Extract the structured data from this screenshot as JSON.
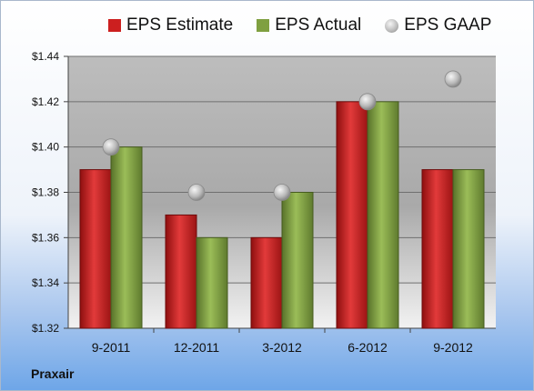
{
  "company": "Praxair",
  "chart_data": {
    "type": "bar",
    "categories": [
      "9-2011",
      "12-2011",
      "3-2012",
      "6-2012",
      "9-2012"
    ],
    "series": [
      {
        "name": "EPS Estimate",
        "kind": "bar",
        "color": "#cc1f1f",
        "values": [
          1.39,
          1.37,
          1.36,
          1.42,
          1.39
        ]
      },
      {
        "name": "EPS Actual",
        "kind": "bar",
        "color": "#7fa040",
        "values": [
          1.4,
          1.36,
          1.38,
          1.42,
          1.39
        ]
      },
      {
        "name": "EPS GAAP",
        "kind": "marker",
        "color": "#b8b8b8",
        "values": [
          1.4,
          1.38,
          1.38,
          1.42,
          1.43
        ]
      }
    ],
    "ylim": [
      1.32,
      1.44
    ],
    "yticks": [
      "$1.32",
      "$1.34",
      "$1.36",
      "$1.38",
      "$1.40",
      "$1.42",
      "$1.44"
    ],
    "ytick_values": [
      1.32,
      1.34,
      1.36,
      1.38,
      1.4,
      1.42,
      1.44
    ],
    "grid": true,
    "legend": "top"
  }
}
